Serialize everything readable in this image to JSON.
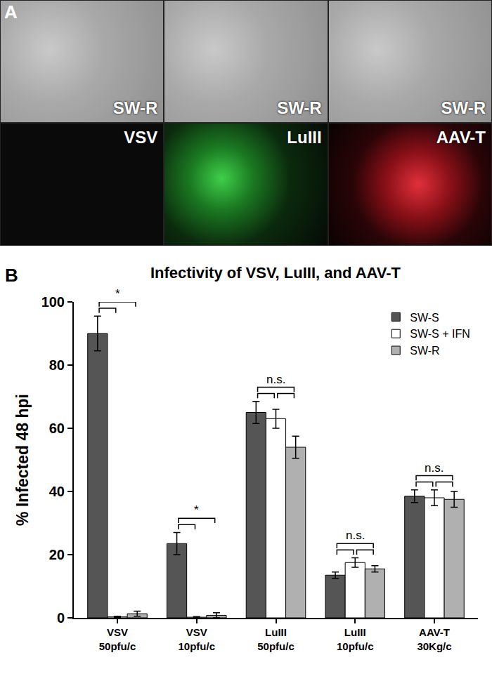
{
  "panel_a": {
    "label": "A",
    "tiles": [
      {
        "label": "SW-R",
        "kind": "phase"
      },
      {
        "label": "SW-R",
        "kind": "phase"
      },
      {
        "label": "SW-R",
        "kind": "phase"
      },
      {
        "label": "VSV",
        "kind": "dark"
      },
      {
        "label": "LuIII",
        "kind": "green"
      },
      {
        "label": "AAV-T",
        "kind": "red"
      }
    ]
  },
  "chart_data": {
    "type": "bar",
    "panel_label": "B",
    "title": "Infectivity of VSV, LuIII, and AAV-T",
    "y_label": "% Infected 48 hpi",
    "categories": [
      "VSV 50pfu/c",
      "VSV 10pfu/c",
      "LuIII 50pfu/c",
      "LuIII 10pfu/c",
      "AAV-T 30Kg/c"
    ],
    "series": [
      {
        "name": "SW-S",
        "color": "#555555",
        "values": [
          90,
          23.5,
          65,
          13.5,
          38.5
        ],
        "errors": [
          5.5,
          3.5,
          3.5,
          1,
          2
        ]
      },
      {
        "name": "SW-S + IFN",
        "color": "#ffffff",
        "values": [
          0.3,
          0.2,
          63,
          17.5,
          38
        ],
        "errors": [
          0.2,
          0.2,
          3,
          1.5,
          2.5
        ]
      },
      {
        "name": "SW-R",
        "color": "#b0b0b0",
        "values": [
          1.3,
          0.8,
          54,
          15.5,
          37.5
        ],
        "errors": [
          0.8,
          0.8,
          3.5,
          1,
          2.5
        ]
      }
    ],
    "significance": [
      {
        "category": "VSV 50pfu/c",
        "text": "*",
        "comparisons": [
          [
            "SW-S",
            "SW-S + IFN"
          ],
          [
            "SW-S",
            "SW-R"
          ]
        ]
      },
      {
        "category": "VSV 10pfu/c",
        "text": "*",
        "comparisons": [
          [
            "SW-S",
            "SW-S + IFN"
          ],
          [
            "SW-S",
            "SW-R"
          ]
        ]
      },
      {
        "category": "LuIII 50pfu/c",
        "text": "n.s.",
        "comparisons": [
          [
            "SW-S",
            "SW-S + IFN"
          ],
          [
            "SW-S + IFN",
            "SW-R"
          ],
          [
            "SW-S",
            "SW-R"
          ]
        ]
      },
      {
        "category": "LuIII 10pfu/c",
        "text": "n.s.",
        "comparisons": [
          [
            "SW-S",
            "SW-S + IFN"
          ],
          [
            "SW-S + IFN",
            "SW-R"
          ],
          [
            "SW-S",
            "SW-R"
          ]
        ]
      },
      {
        "category": "AAV-T 30Kg/c",
        "text": "n.s.",
        "comparisons": [
          [
            "SW-S",
            "SW-S + IFN"
          ],
          [
            "SW-S + IFN",
            "SW-R"
          ],
          [
            "SW-S",
            "SW-R"
          ]
        ]
      }
    ],
    "ylim": [
      0,
      100
    ],
    "yticks": [
      0,
      20,
      40,
      60,
      80,
      100
    ],
    "grid": false,
    "legend": "upper right"
  }
}
